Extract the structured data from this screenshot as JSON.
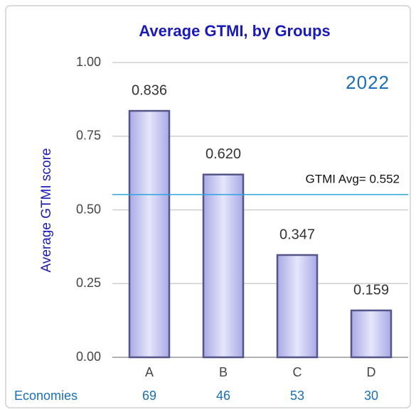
{
  "chart_data": {
    "type": "bar",
    "title": "Average GTMI, by Groups",
    "y_label": "Average GTMI score",
    "annotation": "2022",
    "categories": [
      "A",
      "B",
      "C",
      "D"
    ],
    "values": [
      0.836,
      0.62,
      0.347,
      0.159
    ],
    "value_labels": [
      "0.836",
      "0.620",
      "0.347",
      "0.159"
    ],
    "color": "#c8c8f2",
    "ylim": [
      0,
      1
    ],
    "yticks": [
      {
        "value": 0,
        "label": "0.00"
      },
      {
        "value": 0.25,
        "label": "0.25"
      },
      {
        "value": 0.5,
        "label": "0.50"
      },
      {
        "value": 0.75,
        "label": "0.75"
      },
      {
        "value": 1,
        "label": "1.00"
      }
    ],
    "grid": true,
    "reference_line": {
      "value": 0.552,
      "label": "GTMI Avg= 0.552",
      "color": "#2aa6de"
    },
    "economies": {
      "label": "Economies",
      "values": [
        69,
        46,
        53,
        30
      ]
    }
  }
}
